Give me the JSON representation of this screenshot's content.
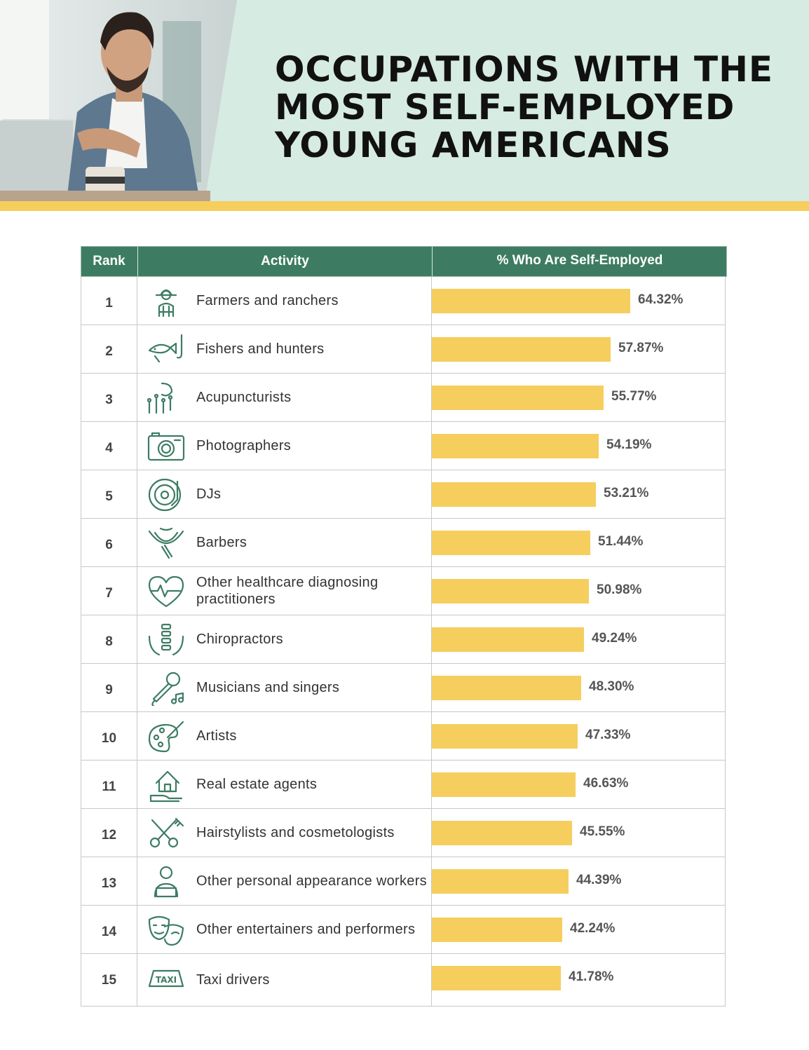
{
  "title": "OCCUPATIONS WITH THE MOST SELF-EMPLOYED YOUNG AMERICANS",
  "colors": {
    "header_bg": "#d6ebe2",
    "accent": "#3d7c63",
    "bar": "#f5ce5e"
  },
  "chart_data": {
    "type": "bar",
    "orientation": "horizontal",
    "columns": [
      "Rank",
      "Activity",
      "% Who Are Self-Employed"
    ],
    "unit": "%",
    "rows": [
      {
        "rank": "1",
        "activity": "Farmers and ranchers",
        "value": 64.32,
        "label": "64.32%",
        "icon": "farmer-icon"
      },
      {
        "rank": "2",
        "activity": "Fishers and hunters",
        "value": 57.87,
        "label": "57.87%",
        "icon": "fish-hook-icon"
      },
      {
        "rank": "3",
        "activity": "Acupuncturists",
        "value": 55.77,
        "label": "55.77%",
        "icon": "acupuncture-needles-icon"
      },
      {
        "rank": "4",
        "activity": "Photographers",
        "value": 54.19,
        "label": "54.19%",
        "icon": "camera-icon"
      },
      {
        "rank": "5",
        "activity": "DJs",
        "value": 53.21,
        "label": "53.21%",
        "icon": "vinyl-record-icon"
      },
      {
        "rank": "6",
        "activity": "Barbers",
        "value": 51.44,
        "label": "51.44%",
        "icon": "beard-razor-icon"
      },
      {
        "rank": "7",
        "activity": "Other healthcare diagnosing practitioners",
        "value": 50.98,
        "label": "50.98%",
        "icon": "heartbeat-icon"
      },
      {
        "rank": "8",
        "activity": "Chiropractors",
        "value": 49.24,
        "label": "49.24%",
        "icon": "spine-hands-icon"
      },
      {
        "rank": "9",
        "activity": "Musicians and singers",
        "value": 48.3,
        "label": "48.30%",
        "icon": "microphone-icon"
      },
      {
        "rank": "10",
        "activity": "Artists",
        "value": 47.33,
        "label": "47.33%",
        "icon": "palette-icon"
      },
      {
        "rank": "11",
        "activity": "Real estate agents",
        "value": 46.63,
        "label": "46.63%",
        "icon": "house-hand-icon"
      },
      {
        "rank": "12",
        "activity": "Hairstylists and cosmetologists",
        "value": 45.55,
        "label": "45.55%",
        "icon": "scissors-comb-icon"
      },
      {
        "rank": "13",
        "activity": "Other personal appearance workers",
        "value": 44.39,
        "label": "44.39%",
        "icon": "person-laptop-icon"
      },
      {
        "rank": "14",
        "activity": "Other entertainers and performers",
        "value": 42.24,
        "label": "42.24%",
        "icon": "theater-masks-icon"
      },
      {
        "rank": "15",
        "activity": "Taxi drivers",
        "value": 41.78,
        "label": "41.78%",
        "icon": "taxi-sign-icon"
      }
    ]
  }
}
